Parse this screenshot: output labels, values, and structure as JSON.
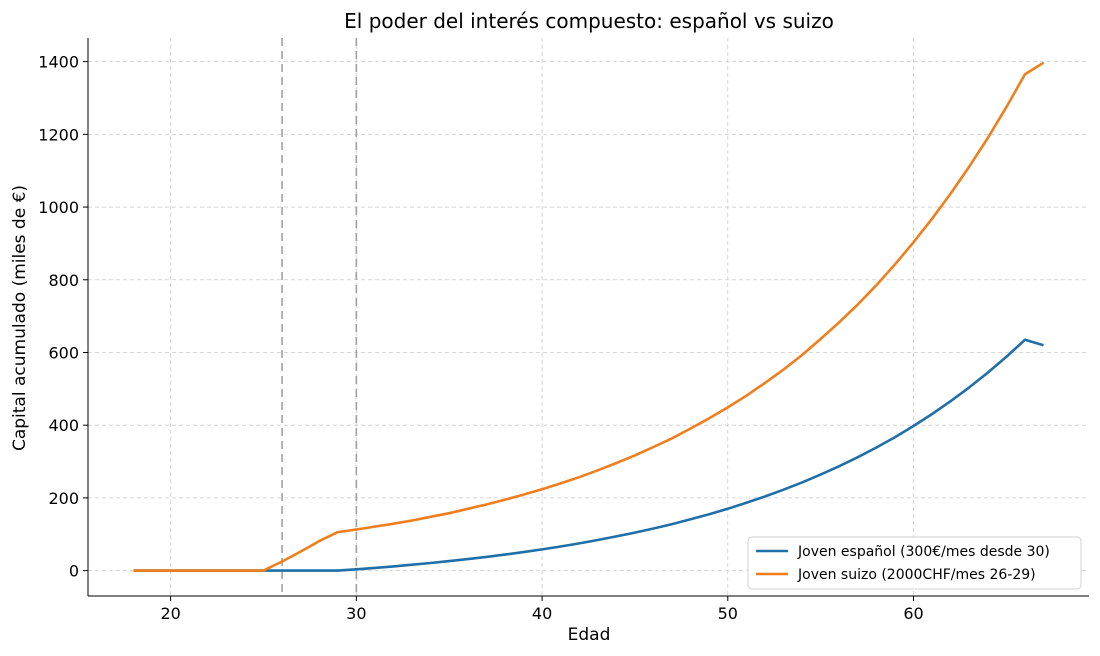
{
  "chart_data": {
    "type": "line",
    "title": "El poder del interés compuesto: español vs suizo",
    "xlabel": "Edad",
    "ylabel": "Capital acumulado (miles de €)",
    "xlim": [
      15.55,
      69.45
    ],
    "ylim": [
      -69.8,
      1465.0
    ],
    "xticks": [
      20,
      30,
      40,
      50,
      60
    ],
    "yticks": [
      0,
      200,
      400,
      600,
      800,
      1000,
      1200,
      1400
    ],
    "grid": true,
    "legend_position": "lower-right",
    "vlines": [
      26,
      30
    ],
    "series": [
      {
        "name": "Joven español (300€/mes desde 30)",
        "color": "#1f6fa8",
        "x": [
          18,
          19,
          20,
          21,
          22,
          23,
          24,
          25,
          26,
          27,
          28,
          29,
          30,
          31,
          32,
          33,
          34,
          35,
          36,
          37,
          38,
          39,
          40,
          41,
          42,
          43,
          44,
          45,
          46,
          47,
          48,
          49,
          50,
          51,
          52,
          53,
          54,
          55,
          56,
          57,
          58,
          59,
          60,
          61,
          62,
          63,
          64,
          65,
          66,
          67
        ],
        "y": [
          0,
          0,
          0,
          0,
          0,
          0,
          0,
          0,
          0,
          0,
          0,
          0,
          3.6,
          7.5,
          11.7,
          16.2,
          21.0,
          26.2,
          31.7,
          37.7,
          44.1,
          51.0,
          58.4,
          66.4,
          75.0,
          84.1,
          94.0,
          104.6,
          115.9,
          128.1,
          141.2,
          155.3,
          170.4,
          186.6,
          203.9,
          222.6,
          242.6,
          264.1,
          287.2,
          312.0,
          338.6,
          367.1,
          397.8,
          430.7,
          466.0,
          503.9,
          544.6,
          588.2,
          635.0,
          620.0
        ]
      },
      {
        "name": "Joven suizo (2000CHF/mes 26-29)",
        "color": "#f07e1d",
        "x": [
          18,
          19,
          20,
          21,
          22,
          23,
          24,
          25,
          26,
          27,
          28,
          29,
          30,
          31,
          32,
          33,
          34,
          35,
          36,
          37,
          38,
          39,
          40,
          41,
          42,
          43,
          44,
          45,
          46,
          47,
          48,
          49,
          50,
          51,
          52,
          53,
          54,
          55,
          56,
          57,
          58,
          59,
          60,
          61,
          62,
          63,
          64,
          65,
          66,
          67
        ],
        "y": [
          0,
          0,
          0,
          0,
          0,
          0,
          0,
          0,
          25.2,
          52.2,
          81.2,
          106.0,
          113.0,
          121.0,
          129.0,
          138.0,
          148.0,
          158.0,
          170.0,
          182.0,
          195.0,
          209.0,
          224.0,
          240.0,
          257.0,
          276.0,
          296.0,
          317.0,
          340.0,
          364.0,
          391.0,
          419.0,
          449.0,
          481.0,
          516.0,
          553.0,
          593.0,
          637.0,
          683.0,
          732.0,
          785.0,
          842.0,
          903.0,
          968.0,
          1037.0,
          1111.0,
          1190.0,
          1275.0,
          1365.0,
          1397.0
        ]
      }
    ]
  }
}
